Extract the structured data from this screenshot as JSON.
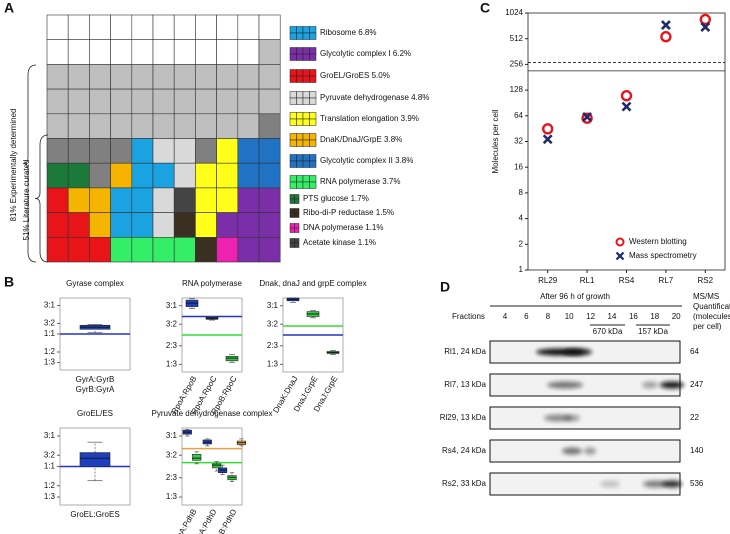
{
  "panels": [
    "A",
    "B",
    "C",
    "D"
  ],
  "chart_data": [
    {
      "type": "waffle",
      "brace_labels": [
        "81% Experimentally determined",
        "51% Literature curated"
      ],
      "series": [
        {
          "name": "Ribosome 6.8%",
          "color": "#1aa3e0"
        },
        {
          "name": "Glycolytic complex I 6.2%",
          "color": "#7a2fa8"
        },
        {
          "name": "GroEL/GroES 5.0%",
          "color": "#e8141a"
        },
        {
          "name": "Pyruvate dehydrogenase 4.8%",
          "color": "#d9d9d9"
        },
        {
          "name": "Translation elongation 3.9%",
          "color": "#ffff1a"
        },
        {
          "name": "DnaK/DnaJ/GrpE 3.8%",
          "color": "#f5b400"
        },
        {
          "name": "Glycolytic complex II 3.8%",
          "color": "#1f72c4"
        },
        {
          "name": "RNA polymerase 3.7%",
          "color": "#33ee66"
        },
        {
          "name": "PTS glucose 1.7%",
          "color": "#1b7a3a"
        },
        {
          "name": "Ribo-di-P reductase 1.5%",
          "color": "#3b2f22"
        },
        {
          "name": "DNA polymerase 1.1%",
          "color": "#ee22b0"
        },
        {
          "name": "Acetate kinase 1.1%",
          "color": "#444444"
        }
      ]
    },
    {
      "type": "box",
      "title": "Gyrase complex",
      "categories": [
        "GyrA:GyrB"
      ],
      "second_label": "GyrB:GyrA",
      "log_scale": true,
      "ylim": [
        0.25,
        4
      ],
      "yticks": [
        {
          "value": 3,
          "label": "3:1"
        },
        {
          "value": 1.5,
          "label": "3:2"
        },
        {
          "value": 1,
          "label": "1:1"
        },
        {
          "value": 0.5,
          "label": "1:2"
        },
        {
          "value": 0.333,
          "label": "1:3"
        }
      ],
      "reference_lines": [
        {
          "value": 1,
          "color": "#2233cc"
        }
      ],
      "series": [
        {
          "color": "#1f3fbf",
          "boxes": [
            {
              "min": 1.05,
              "q1": 1.2,
              "median": 1.3,
              "q3": 1.4,
              "max": 1.45
            }
          ]
        }
      ]
    },
    {
      "type": "box",
      "title": "RNA polymerase",
      "categories": [
        "RpoA:RpoB",
        "RpoA:RpoC",
        "RpoB:RpoC"
      ],
      "rotate_labels": true,
      "log_scale": true,
      "ylim": [
        0.25,
        4
      ],
      "yticks": [
        {
          "value": 3,
          "label": "3:1"
        },
        {
          "value": 1.5,
          "label": "3:2"
        },
        {
          "value": 0.667,
          "label": "2:3"
        },
        {
          "value": 0.333,
          "label": "1:3"
        }
      ],
      "reference_lines": [
        {
          "value": 2,
          "color": "#2233cc"
        },
        {
          "value": 1,
          "color": "#33dd33"
        }
      ],
      "series": [
        {
          "color": "#1f3fbf",
          "boxes": [
            {
              "min": 2.7,
              "q1": 2.9,
              "median": 3.3,
              "q3": 3.7,
              "max": 3.9
            },
            {
              "min": 1.75,
              "q1": 1.8,
              "median": 1.87,
              "q3": 1.95,
              "max": 2.0
            },
            null
          ]
        },
        {
          "color": "#33cc44",
          "boxes": [
            null,
            null,
            {
              "min": 0.36,
              "q1": 0.38,
              "median": 0.42,
              "q3": 0.45,
              "max": 0.48
            }
          ]
        }
      ]
    },
    {
      "type": "box",
      "title": "Dnak, dnaJ and grpE complex",
      "categories": [
        "DnaK:DnaJ",
        "DnaJ:GrpE",
        "DnaJ:GrpE"
      ],
      "rotate_labels": true,
      "log_scale": true,
      "ylim": [
        0.25,
        4
      ],
      "yticks": [
        {
          "value": 3,
          "label": "3:1"
        },
        {
          "value": 1.5,
          "label": "3:2"
        },
        {
          "value": 0.667,
          "label": "2:3"
        },
        {
          "value": 0.333,
          "label": "1:3"
        }
      ],
      "reference_lines": [
        {
          "value": 1,
          "color": "#2233cc"
        },
        {
          "value": 1.4,
          "color": "#33dd33"
        }
      ],
      "series": [
        {
          "color": "#1f3fbf",
          "boxes": [
            {
              "min": 3.4,
              "q1": 3.6,
              "median": 3.8,
              "q3": 4.0,
              "max": 4.0
            },
            null,
            null
          ]
        },
        {
          "color": "#33cc44",
          "boxes": [
            null,
            {
              "min": 1.9,
              "q1": 2.0,
              "median": 2.2,
              "q3": 2.4,
              "max": 2.5
            },
            {
              "min": 0.48,
              "q1": 0.5,
              "median": 0.52,
              "q3": 0.54,
              "max": 0.56
            }
          ]
        }
      ]
    },
    {
      "type": "box",
      "title": "GroEL/ES",
      "categories": [
        "GroEL:GroES"
      ],
      "log_scale": true,
      "ylim": [
        0.25,
        4
      ],
      "yticks": [
        {
          "value": 3,
          "label": "3:1"
        },
        {
          "value": 1.5,
          "label": "3:2"
        },
        {
          "value": 1,
          "label": "1:1"
        },
        {
          "value": 0.5,
          "label": "1:2"
        },
        {
          "value": 0.333,
          "label": "1:3"
        }
      ],
      "reference_lines": [
        {
          "value": 1,
          "color": "#2233cc"
        }
      ],
      "series": [
        {
          "color": "#1f3fbf",
          "boxes": [
            {
              "min": 0.6,
              "q1": 1.0,
              "median": 1.35,
              "q3": 1.65,
              "max": 2.4
            }
          ]
        }
      ]
    },
    {
      "type": "box",
      "title": "Pyruvate dehydrogenase complex",
      "categories": [
        "PdhA:PdhB",
        "PdhA:PdhD",
        "PdhB:PdhD"
      ],
      "rotate_labels": true,
      "log_scale": true,
      "ylim": [
        0.25,
        4
      ],
      "yticks": [
        {
          "value": 3,
          "label": "3:1"
        },
        {
          "value": 1.5,
          "label": "3:2"
        },
        {
          "value": 0.667,
          "label": "2:3"
        },
        {
          "value": 0.333,
          "label": "1:3"
        }
      ],
      "reference_lines": [
        {
          "value": 1.9,
          "color": "#e8a040"
        },
        {
          "value": 1.15,
          "color": "#33dd33"
        }
      ],
      "series": [
        {
          "color": "#1f3fbf",
          "boxes": [
            {
              "min": 3.0,
              "q1": 3.2,
              "median": 3.45,
              "q3": 3.7,
              "max": 3.8
            },
            {
              "min": 2.1,
              "q1": 2.25,
              "median": 2.4,
              "q3": 2.6,
              "max": 2.7
            },
            {
              "min": 0.75,
              "q1": 0.8,
              "median": 0.88,
              "q3": 0.95,
              "max": 1.05
            }
          ]
        },
        {
          "color": "#33cc44",
          "boxes": [
            {
              "min": 1.1,
              "q1": 1.25,
              "median": 1.35,
              "q3": 1.55,
              "max": 1.7
            },
            {
              "min": 0.85,
              "q1": 0.95,
              "median": 1.05,
              "q3": 1.1,
              "max": 1.2
            },
            {
              "min": 0.58,
              "q1": 0.62,
              "median": 0.68,
              "q3": 0.72,
              "max": 0.8
            }
          ]
        },
        {
          "color": "#f0a030",
          "boxes": [
            null,
            null,
            {
              "min": 2.1,
              "q1": 2.2,
              "median": 2.35,
              "q3": 2.5,
              "max": 2.7
            }
          ]
        }
      ]
    },
    {
      "type": "scatter",
      "ylabel": "Molecules per cell",
      "categories": [
        "RL29",
        "RL1",
        "RS4",
        "RL7",
        "RS2"
      ],
      "log_base": 2,
      "ylim": [
        1,
        1024
      ],
      "yticks": [
        1,
        2,
        4,
        8,
        16,
        32,
        64,
        128,
        256,
        512,
        1024
      ],
      "reference_lines": [
        {
          "value": 270,
          "style": "dashed"
        },
        {
          "value": 215,
          "style": "solid"
        }
      ],
      "legend": "lower right",
      "series": [
        {
          "name": "Western blotting",
          "color": "#e8141a",
          "marker": "circle",
          "values": [
            45,
            60,
            110,
            540,
            860
          ]
        },
        {
          "name": "Mass spectrometry",
          "color": "#1f2a6b",
          "marker": "x",
          "values": [
            34,
            62,
            82,
            740,
            700
          ]
        }
      ]
    }
  ],
  "gel": {
    "title": "After 96 h of growth",
    "fractions_label": "Fractions",
    "fractions": [
      4,
      6,
      8,
      10,
      12,
      14,
      16,
      18,
      20
    ],
    "size_markers": [
      "670 kDa",
      "157 kDa"
    ],
    "quant_label": [
      "MS/MS",
      "Quantification",
      "(molecules",
      "per cell)"
    ],
    "lanes": [
      {
        "label": "Rl1, 24 kDa",
        "value": 64
      },
      {
        "label": "Rl7, 13 kDa",
        "value": 247
      },
      {
        "label": "Rl29, 13 kDa",
        "value": 22
      },
      {
        "label": "Rs4, 24 kDa",
        "value": 140
      },
      {
        "label": "Rs2, 33 kDa",
        "value": 536
      }
    ]
  }
}
